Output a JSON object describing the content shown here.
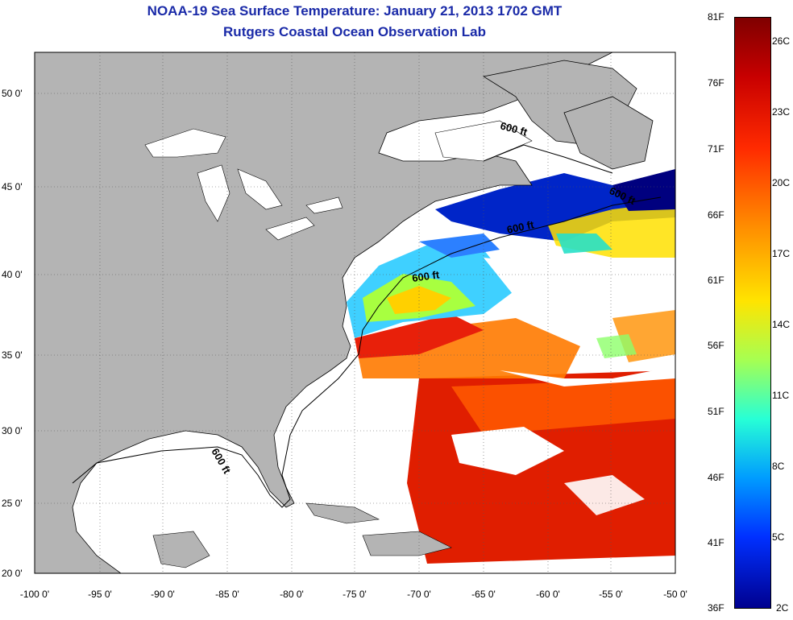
{
  "title": {
    "line1": "NOAA-19 Sea Surface Temperature:  January 21, 2013 1702 GMT",
    "line2": "Rutgers Coastal Ocean Observation Lab"
  },
  "map": {
    "lon_ticks": [
      "-100 0'",
      "-95 0'",
      "-90 0'",
      "-85 0'",
      "-80 0'",
      "-75 0'",
      "-70 0'",
      "-65 0'",
      "-60 0'",
      "-55 0'",
      "-50 0'"
    ],
    "lat_ticks": [
      "50 0'",
      "45 0'",
      "40 0'",
      "35 0'",
      "30 0'",
      "25 0'",
      "20 0'"
    ],
    "contour_labels": [
      "600 ft",
      "600 ft",
      "600 ft",
      "600 ft",
      "600 ft"
    ],
    "land_color": "#bbbbbb",
    "ocean_color": "#ffffff"
  },
  "colorbar": {
    "fahrenheit": [
      "81F",
      "76F",
      "71F",
      "66F",
      "61F",
      "56F",
      "51F",
      "46F",
      "41F",
      "36F"
    ],
    "celsius": [
      "26C",
      "23C",
      "20C",
      "17C",
      "14C",
      "11C",
      "8C",
      "5C",
      "2C"
    ]
  }
}
